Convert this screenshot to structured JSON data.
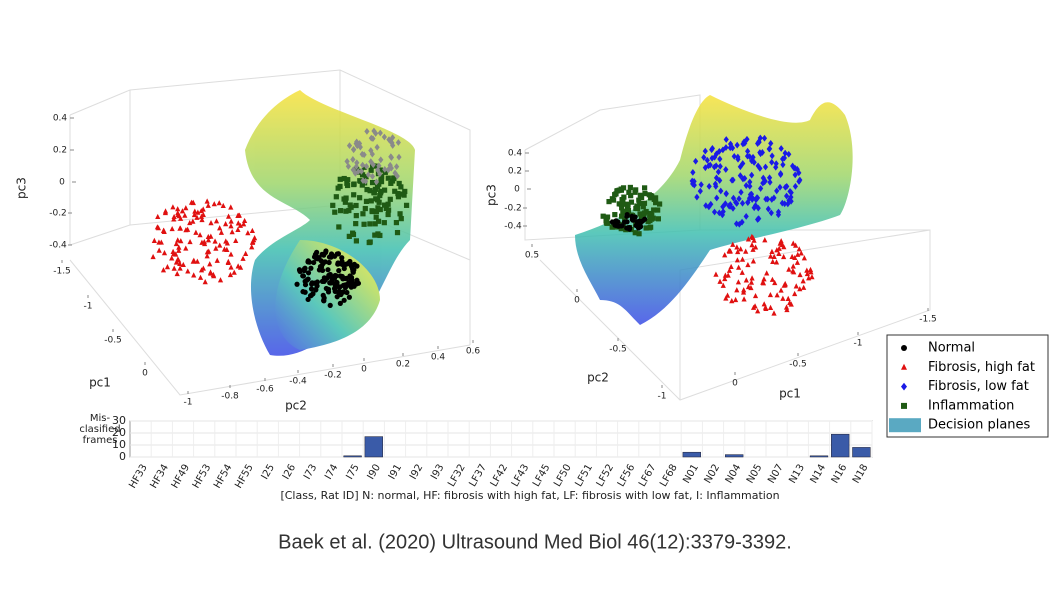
{
  "panels": [
    {
      "zlabel": "pc3",
      "zticks": [
        0.4,
        0.2,
        0,
        -0.2,
        -0.4
      ],
      "xlabel": "pc1",
      "xticks": [
        -1.5,
        -1,
        -0.5,
        0
      ],
      "ylabel": "pc2",
      "yticks": [
        -1,
        -0.8,
        -0.6,
        -0.4,
        -0.2,
        0,
        0.2,
        0.4,
        0.6
      ]
    },
    {
      "zlabel": "pc3",
      "zticks": [
        0.4,
        0.2,
        0,
        -0.2,
        -0.4
      ],
      "ylabel": "pc2",
      "yticks": [
        0.5,
        0,
        -0.5,
        -1
      ],
      "xlabel": "pc1",
      "xticks": [
        0,
        -0.5,
        -1,
        -1.5
      ]
    }
  ],
  "legend": [
    {
      "name": "Normal",
      "color": "#000000",
      "marker": "circle"
    },
    {
      "name": "Fibrosis, high fat",
      "color": "#e01010",
      "marker": "triangle"
    },
    {
      "name": "Fibrosis, low fat",
      "color": "#1a1ae6",
      "marker": "diamond"
    },
    {
      "name": "Inflammation",
      "color": "#1f5a14",
      "marker": "square"
    },
    {
      "name": "Decision planes",
      "color": "#5aa9c2",
      "marker": "patch"
    }
  ],
  "chart_data": {
    "type": "bar",
    "ylabel": [
      "Mis-",
      "clasified",
      "frames"
    ],
    "xlabel": "[Class, Rat ID] N: normal, HF: fibrosis with high fat, LF: fibrosis with low fat, I: Inflammation",
    "categories": [
      "HF33",
      "HF34",
      "HF49",
      "HF53",
      "HF54",
      "HF55",
      "I25",
      "I26",
      "I73",
      "I74",
      "I75",
      "I90",
      "I91",
      "I92",
      "I93",
      "LF32",
      "LF37",
      "LF42",
      "LF43",
      "LF45",
      "LF50",
      "LF51",
      "LF52",
      "LF56",
      "LF67",
      "LF68",
      "N01",
      "N02",
      "N04",
      "N05",
      "N07",
      "N13",
      "N14",
      "N16",
      "N18"
    ],
    "values": [
      0,
      0,
      0,
      0,
      0,
      0,
      0,
      0,
      0,
      0,
      1,
      17,
      0,
      0,
      0,
      0,
      0,
      0,
      0,
      0,
      0,
      0,
      0,
      0,
      0,
      0,
      4,
      0,
      2,
      0,
      0,
      0,
      1,
      19,
      8
    ],
    "color": "#3a5ba8",
    "ylim": [
      0,
      30
    ],
    "yticks": [
      0,
      10,
      20,
      30
    ],
    "grid": true
  },
  "caption": "Baek et al. (2020) Ultrasound Med Biol 46(12):3379-3392."
}
